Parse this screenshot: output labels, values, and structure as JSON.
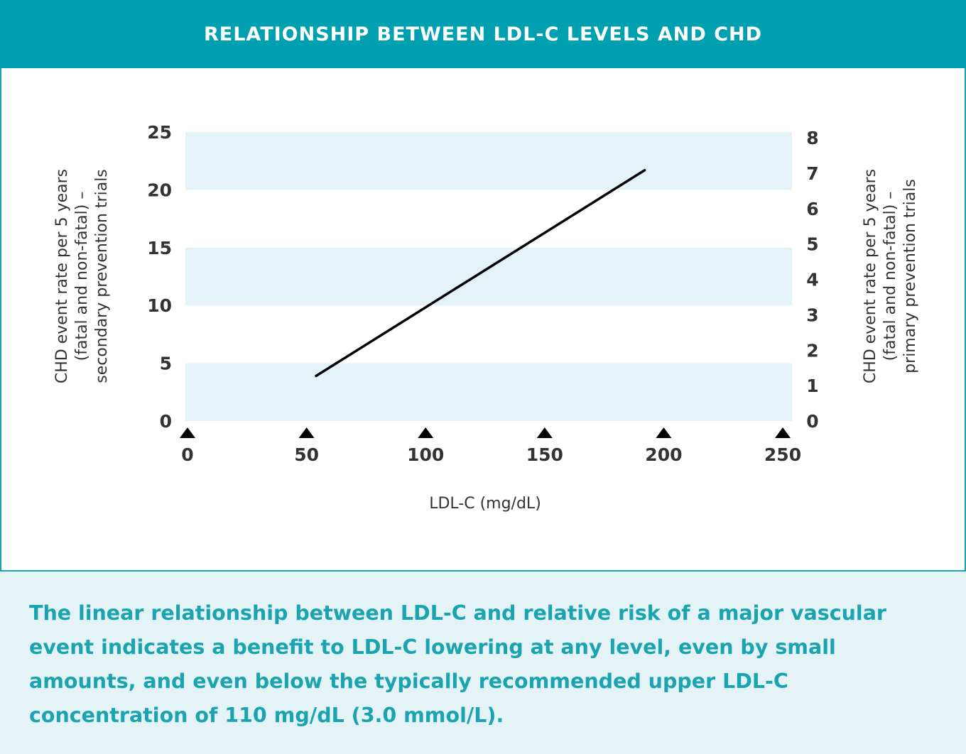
{
  "header": {
    "title": "RELATIONSHIP BETWEEN LDL-C LEVELS AND CHD"
  },
  "chart_data": {
    "type": "line",
    "title": "RELATIONSHIP BETWEEN LDL-C LEVELS AND CHD",
    "xlabel": "LDL-C (mg/dL)",
    "ylabel": [
      "CHD event rate per 5 years",
      "(fatal and non-fatal) –",
      "secondary prevention trials"
    ],
    "ylabel_right": [
      "CHD event rate per 5 years",
      "(fatal and non-fatal) –",
      "primary prevention trials"
    ],
    "xlim": [
      0,
      250
    ],
    "ylim": [
      0,
      25
    ],
    "ylim_right": [
      0,
      8
    ],
    "x_ticks": [
      "0",
      "50",
      "100",
      "150",
      "200",
      "250"
    ],
    "y_ticks": [
      "0",
      "5",
      "10",
      "15",
      "20",
      "25"
    ],
    "y_ticks_right": [
      "0",
      "1",
      "2",
      "3",
      "4",
      "5",
      "6",
      "7",
      "8"
    ],
    "grid": "alternating horizontal bands",
    "band_color": "#e3f3f7",
    "line_color": "#000000",
    "series": [
      {
        "x": [
          54,
          192
        ],
        "y": [
          3.9,
          21.7
        ]
      }
    ]
  },
  "caption": "The linear relationship between LDL-C and relative risk of a major vascular event indicates a benefit to LDL-C lowering at any level, even by small amounts, and even below the typically recommended upper LDL-C concentration of 110 mg/dL (3.0 mmol/L).",
  "colors": {
    "header": "#00a0b0",
    "caption_text": "#1aa3b0",
    "caption_bg": "#e4f3f6"
  }
}
